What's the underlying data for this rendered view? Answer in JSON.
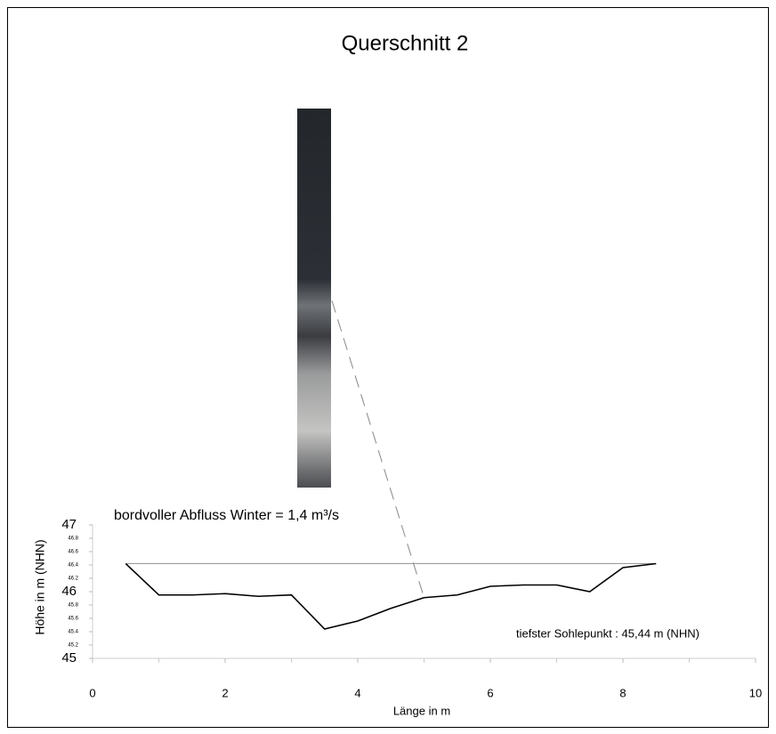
{
  "chart_data": {
    "type": "line",
    "title": "Querschnitt 2",
    "xlabel": "Länge in m",
    "ylabel": "Höhe in m (NHN)",
    "annotations": [
      "bordvoller Abfluss Winter  = 1,4 m³/s",
      "tiefster Sohlepunkt : 45,44 m (NHN)"
    ],
    "x": [
      0.5,
      1,
      1.5,
      2,
      2.5,
      3,
      3.5,
      4,
      4.5,
      5,
      5.5,
      6,
      6.5,
      7,
      7.5,
      8,
      8.5
    ],
    "series": [
      {
        "color": "#000000",
        "values": [
          46.42,
          45.95,
          45.95,
          45.97,
          45.93,
          45.95,
          45.44,
          45.56,
          45.75,
          45.91,
          45.95,
          46.08,
          46.1,
          46.1,
          46.0,
          46.36,
          46.42
        ]
      },
      {
        "color": "#999999",
        "values": [
          46.42,
          46.42,
          46.42,
          46.42,
          46.42,
          46.42,
          46.42,
          46.42,
          46.42,
          46.42,
          46.42,
          46.42,
          46.42,
          46.42,
          46.42,
          46.42,
          46.42
        ]
      }
    ],
    "xlim": [
      0,
      10
    ],
    "xticks": [
      0,
      2,
      4,
      6,
      8,
      10
    ],
    "x_minor_ticks": [
      1,
      3,
      5,
      7,
      9
    ],
    "ylim": [
      45,
      47
    ],
    "yticks": [
      45,
      45.2,
      45.4,
      45.6,
      45.8,
      46,
      46.2,
      46.4,
      46.6,
      46.8,
      47
    ]
  }
}
